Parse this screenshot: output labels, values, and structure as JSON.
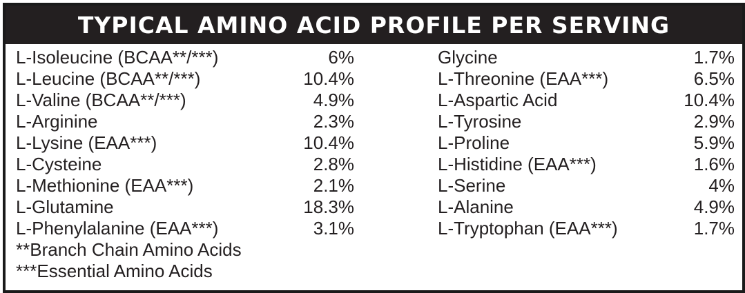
{
  "title": "TYPICAL AMINO ACID PROFILE PER SERVING",
  "colors": {
    "header_bg": "#231f20",
    "header_text": "#ffffff",
    "border": "#1a1a1a",
    "text": "#231f20"
  },
  "left_column": [
    {
      "name": "L-Isoleucine (BCAA**/***)",
      "value": "6%"
    },
    {
      "name": "L-Leucine (BCAA**/***)",
      "value": "10.4%"
    },
    {
      "name": "L-Valine (BCAA**/***)",
      "value": "4.9%"
    },
    {
      "name": "L-Arginine",
      "value": "2.3%"
    },
    {
      "name": "L-Lysine (EAA***)",
      "value": "10.4%"
    },
    {
      "name": "L-Cysteine",
      "value": "2.8%"
    },
    {
      "name": "L-Methionine (EAA***)",
      "value": "2.1%"
    },
    {
      "name": "L-Glutamine",
      "value": "18.3%"
    },
    {
      "name": "L-Phenylalanine (EAA***)",
      "value": "3.1%"
    }
  ],
  "right_column": [
    {
      "name": "Glycine",
      "value": "1.7%"
    },
    {
      "name": "L-Threonine (EAA***)",
      "value": "6.5%"
    },
    {
      "name": "L-Aspartic Acid",
      "value": "10.4%"
    },
    {
      "name": "L-Tyrosine",
      "value": "2.9%"
    },
    {
      "name": "L-Proline",
      "value": "5.9%"
    },
    {
      "name": "L-Histidine (EAA***)",
      "value": "1.6%"
    },
    {
      "name": "L-Serine",
      "value": "4%"
    },
    {
      "name": "L-Alanine",
      "value": "4.9%"
    },
    {
      "name": "L-Tryptophan (EAA***)",
      "value": "1.7%"
    }
  ],
  "footnotes": {
    "bcaa": "**Branch Chain Amino Acids",
    "eaa": "***Essential Amino Acids"
  }
}
